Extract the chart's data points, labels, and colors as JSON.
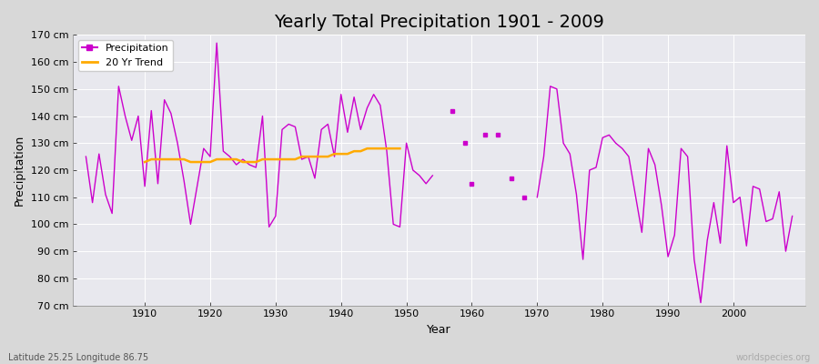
{
  "title": "Yearly Total Precipitation 1901 - 2009",
  "xlabel": "Year",
  "ylabel": "Precipitation",
  "bottom_left_label": "Latitude 25.25 Longitude 86.75",
  "bottom_right_label": "worldspecies.org",
  "ylim": [
    70,
    170
  ],
  "ytick_step": 10,
  "fig_bg_color": "#d8d8d8",
  "plot_bg_color": "#e8e8ee",
  "line_color": "#cc00cc",
  "trend_color": "#ffaa00",
  "precipitation_connected_1": [
    [
      1901,
      125
    ],
    [
      1902,
      108
    ],
    [
      1903,
      126
    ],
    [
      1904,
      111
    ],
    [
      1905,
      104
    ],
    [
      1906,
      151
    ],
    [
      1907,
      140
    ],
    [
      1908,
      131
    ],
    [
      1909,
      140
    ],
    [
      1910,
      114
    ],
    [
      1911,
      142
    ],
    [
      1912,
      115
    ],
    [
      1913,
      146
    ],
    [
      1914,
      141
    ],
    [
      1915,
      130
    ],
    [
      1916,
      116
    ],
    [
      1917,
      100
    ],
    [
      1918,
      114
    ],
    [
      1919,
      128
    ],
    [
      1920,
      125
    ],
    [
      1921,
      167
    ],
    [
      1922,
      127
    ],
    [
      1923,
      125
    ],
    [
      1924,
      122
    ],
    [
      1925,
      124
    ],
    [
      1926,
      122
    ],
    [
      1927,
      121
    ],
    [
      1928,
      140
    ],
    [
      1929,
      99
    ],
    [
      1930,
      103
    ],
    [
      1931,
      135
    ],
    [
      1932,
      137
    ],
    [
      1933,
      136
    ],
    [
      1934,
      124
    ],
    [
      1935,
      125
    ],
    [
      1936,
      117
    ],
    [
      1937,
      135
    ],
    [
      1938,
      137
    ],
    [
      1939,
      125
    ],
    [
      1940,
      148
    ],
    [
      1941,
      134
    ],
    [
      1942,
      147
    ],
    [
      1943,
      135
    ],
    [
      1944,
      143
    ],
    [
      1945,
      148
    ],
    [
      1946,
      144
    ],
    [
      1947,
      127
    ],
    [
      1948,
      100
    ],
    [
      1949,
      99
    ],
    [
      1950,
      130
    ],
    [
      1951,
      120
    ],
    [
      1952,
      118
    ],
    [
      1953,
      115
    ],
    [
      1954,
      118
    ]
  ],
  "precipitation_isolated": [
    [
      1957,
      142
    ],
    [
      1959,
      130
    ],
    [
      1960,
      115
    ],
    [
      1962,
      133
    ],
    [
      1964,
      133
    ],
    [
      1966,
      117
    ],
    [
      1968,
      110
    ]
  ],
  "precipitation_connected_2": [
    [
      1970,
      110
    ],
    [
      1971,
      125
    ],
    [
      1972,
      151
    ],
    [
      1973,
      150
    ],
    [
      1974,
      130
    ],
    [
      1975,
      126
    ],
    [
      1976,
      111
    ],
    [
      1977,
      87
    ],
    [
      1978,
      120
    ],
    [
      1979,
      121
    ],
    [
      1980,
      132
    ],
    [
      1981,
      133
    ],
    [
      1982,
      130
    ],
    [
      1983,
      128
    ],
    [
      1984,
      125
    ],
    [
      1985,
      111
    ],
    [
      1986,
      97
    ],
    [
      1987,
      128
    ],
    [
      1988,
      122
    ],
    [
      1989,
      107
    ],
    [
      1990,
      88
    ],
    [
      1991,
      96
    ],
    [
      1992,
      128
    ],
    [
      1993,
      125
    ],
    [
      1994,
      87
    ],
    [
      1995,
      71
    ],
    [
      1996,
      94
    ],
    [
      1997,
      108
    ],
    [
      1998,
      93
    ],
    [
      1999,
      129
    ],
    [
      2000,
      108
    ],
    [
      2001,
      110
    ],
    [
      2002,
      92
    ],
    [
      2003,
      114
    ],
    [
      2004,
      113
    ],
    [
      2005,
      101
    ],
    [
      2006,
      102
    ],
    [
      2007,
      112
    ],
    [
      2008,
      90
    ],
    [
      2009,
      103
    ]
  ],
  "trend": [
    [
      1910,
      123
    ],
    [
      1911,
      124
    ],
    [
      1912,
      124
    ],
    [
      1913,
      124
    ],
    [
      1914,
      124
    ],
    [
      1915,
      124
    ],
    [
      1916,
      124
    ],
    [
      1917,
      123
    ],
    [
      1918,
      123
    ],
    [
      1919,
      123
    ],
    [
      1920,
      123
    ],
    [
      1921,
      124
    ],
    [
      1922,
      124
    ],
    [
      1923,
      124
    ],
    [
      1924,
      124
    ],
    [
      1925,
      123
    ],
    [
      1926,
      123
    ],
    [
      1927,
      123
    ],
    [
      1928,
      124
    ],
    [
      1929,
      124
    ],
    [
      1930,
      124
    ],
    [
      1931,
      124
    ],
    [
      1932,
      124
    ],
    [
      1933,
      124
    ],
    [
      1934,
      125
    ],
    [
      1935,
      125
    ],
    [
      1936,
      125
    ],
    [
      1937,
      125
    ],
    [
      1938,
      125
    ],
    [
      1939,
      126
    ],
    [
      1940,
      126
    ],
    [
      1941,
      126
    ],
    [
      1942,
      127
    ],
    [
      1943,
      127
    ],
    [
      1944,
      128
    ],
    [
      1945,
      128
    ],
    [
      1946,
      128
    ],
    [
      1947,
      128
    ],
    [
      1948,
      128
    ],
    [
      1949,
      128
    ]
  ],
  "xlim": [
    1899,
    2011
  ],
  "title_fontsize": 14,
  "axis_label_fontsize": 9,
  "tick_fontsize": 8,
  "legend_fontsize": 8
}
